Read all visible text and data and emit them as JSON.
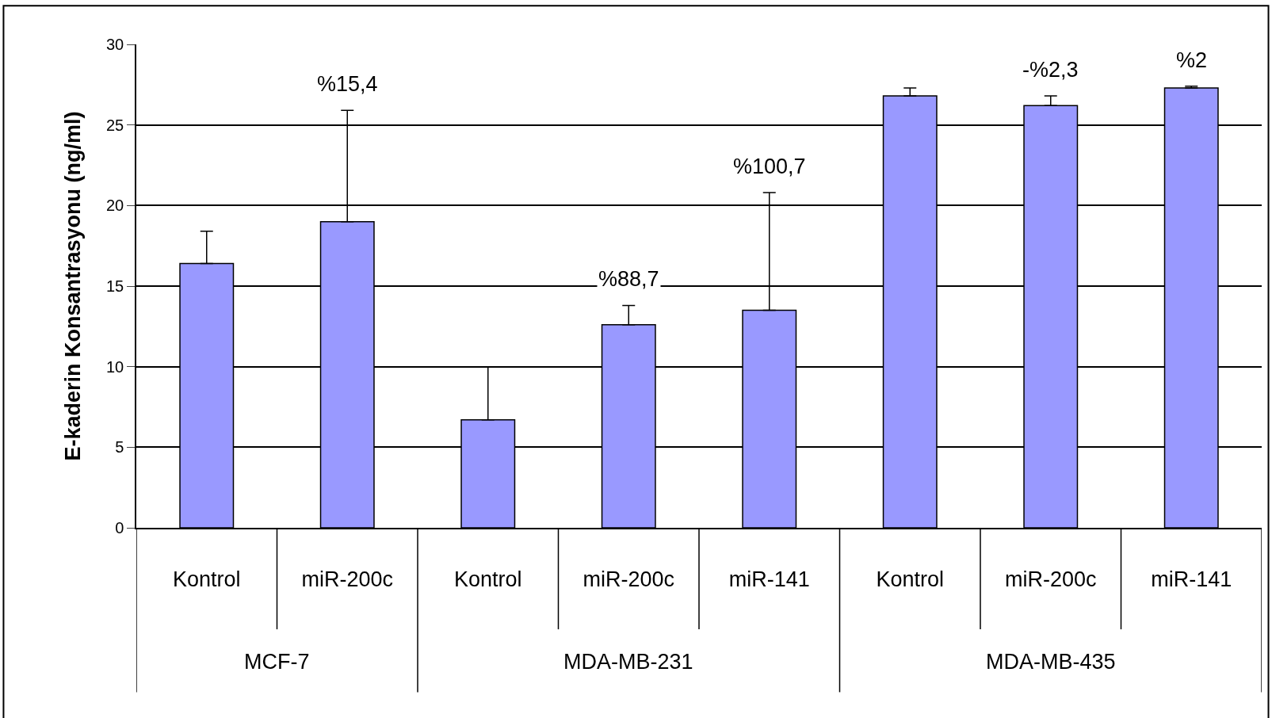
{
  "chart_data": {
    "type": "bar",
    "ylabel": "E-kaderin Konsantrasyonu (ng/ml)",
    "categories": [
      "Kontrol",
      "miR-200c",
      "Kontrol",
      "miR-200c",
      "miR-141",
      "Kontrol",
      "miR-200c",
      "miR-141"
    ],
    "values": [
      16.4,
      19.0,
      6.7,
      12.6,
      13.5,
      26.8,
      26.2,
      27.3
    ],
    "errors": [
      [
        16.4,
        18.4
      ],
      [
        19.0,
        25.9
      ],
      [
        6.7,
        10.0
      ],
      [
        12.6,
        13.8
      ],
      [
        13.5,
        20.8
      ],
      [
        26.8,
        27.3
      ],
      [
        26.2,
        26.8
      ],
      [
        27.3,
        27.4
      ]
    ],
    "color": "#9999ff",
    "annotations": [
      "MCF-7",
      "MDA-MB-231",
      "MDA-MB-435",
      "%15,4",
      "%88,7",
      "%100,7",
      "-%2,3",
      "%2"
    ],
    "ylim": [
      0,
      30
    ],
    "yticks": [
      0,
      5,
      10,
      15,
      20,
      25,
      30
    ],
    "grid": "y"
  }
}
